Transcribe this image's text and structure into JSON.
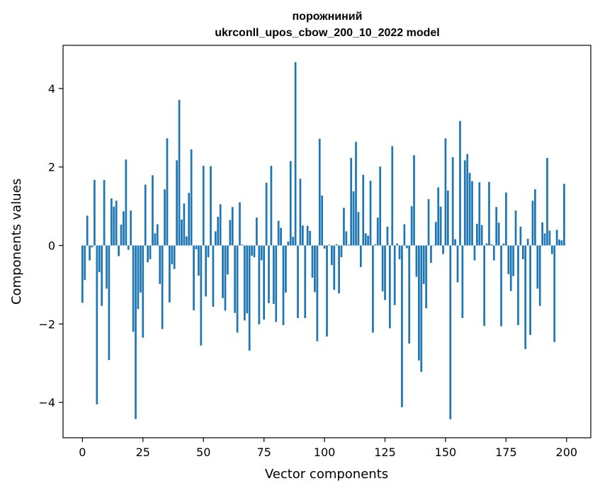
{
  "chart_data": {
    "type": "bar",
    "title": "порожниний",
    "subtitle": "ukrconll_upos_cbow_200_10_2022 model",
    "xlabel": "Vector components",
    "ylabel": "Components values",
    "xlim": [
      -8,
      210
    ],
    "ylim": [
      -4.9,
      5.1
    ],
    "xticks": [
      0,
      25,
      50,
      75,
      100,
      125,
      150,
      175,
      200
    ],
    "yticks": [
      -4,
      -2,
      0,
      2,
      4
    ],
    "ytick_labels": [
      "−4",
      "−2",
      "0",
      "2",
      "4"
    ],
    "bar_color": "#1f77b4",
    "grid": false,
    "values": [
      -1.46,
      -0.88,
      0.76,
      -0.38,
      -0.05,
      1.67,
      -4.05,
      -0.68,
      -1.54,
      1.67,
      -1.1,
      -2.92,
      1.2,
      0.99,
      1.14,
      -0.27,
      0.53,
      0.87,
      2.19,
      -0.11,
      0.89,
      -2.2,
      -4.42,
      -1.62,
      -1.2,
      -2.35,
      1.55,
      -0.43,
      -0.35,
      1.79,
      0.31,
      0.54,
      -0.98,
      -2.13,
      1.43,
      2.73,
      -1.45,
      -0.48,
      -0.6,
      2.17,
      3.71,
      0.66,
      1.07,
      0.23,
      1.34,
      2.45,
      -1.65,
      -0.1,
      -0.77,
      -2.55,
      2.03,
      -1.3,
      -0.3,
      2.02,
      -1.56,
      0.36,
      0.73,
      1.05,
      -1.34,
      -1.66,
      -0.74,
      0.65,
      0.98,
      -1.72,
      -2.22,
      1.1,
      0.02,
      -1.91,
      -1.73,
      -2.68,
      -0.26,
      -0.3,
      0.71,
      -2.01,
      -0.38,
      -1.89,
      1.6,
      -1.47,
      2.03,
      -1.49,
      -1.95,
      0.63,
      0.45,
      -2.03,
      -1.2,
      0.1,
      2.15,
      0.22,
      4.67,
      -1.85,
      1.7,
      0.51,
      -1.85,
      0.5,
      0.37,
      -0.82,
      -1.19,
      -2.44,
      2.72,
      1.27,
      -0.08,
      -2.32,
      0.02,
      -0.5,
      -1.13,
      0.03,
      -1.22,
      -0.3,
      0.96,
      0.36,
      0.02,
      2.23,
      1.38,
      2.64,
      0.85,
      -0.55,
      1.8,
      0.31,
      0.25,
      1.65,
      -2.22,
      0.03,
      0.71,
      2.01,
      -1.17,
      -1.39,
      0.48,
      -2.11,
      2.53,
      -1.52,
      0.05,
      -0.35,
      -4.12,
      0.54,
      -0.07,
      -2.5,
      1.0,
      2.3,
      -0.8,
      -2.93,
      -3.22,
      -0.98,
      -1.6,
      1.18,
      -0.44,
      0.01,
      0.6,
      1.48,
      0.99,
      -0.22,
      2.73,
      1.4,
      -4.43,
      2.25,
      0.16,
      -0.94,
      3.17,
      -1.85,
      2.17,
      2.33,
      1.85,
      1.64,
      -0.38,
      0.55,
      1.61,
      0.52,
      -2.05,
      0.05,
      1.62,
      0.03,
      -0.38,
      0.98,
      0.58,
      -2.06,
      0.05,
      1.35,
      -0.73,
      -1.16,
      -0.78,
      0.89,
      -2.03,
      0.48,
      -0.35,
      -2.64,
      0.17,
      -2.28,
      1.14,
      1.43,
      -1.1,
      -1.54,
      0.59,
      0.31,
      2.23,
      0.38,
      -0.22,
      -2.46,
      0.4,
      0.15,
      0.13,
      1.57
    ]
  }
}
